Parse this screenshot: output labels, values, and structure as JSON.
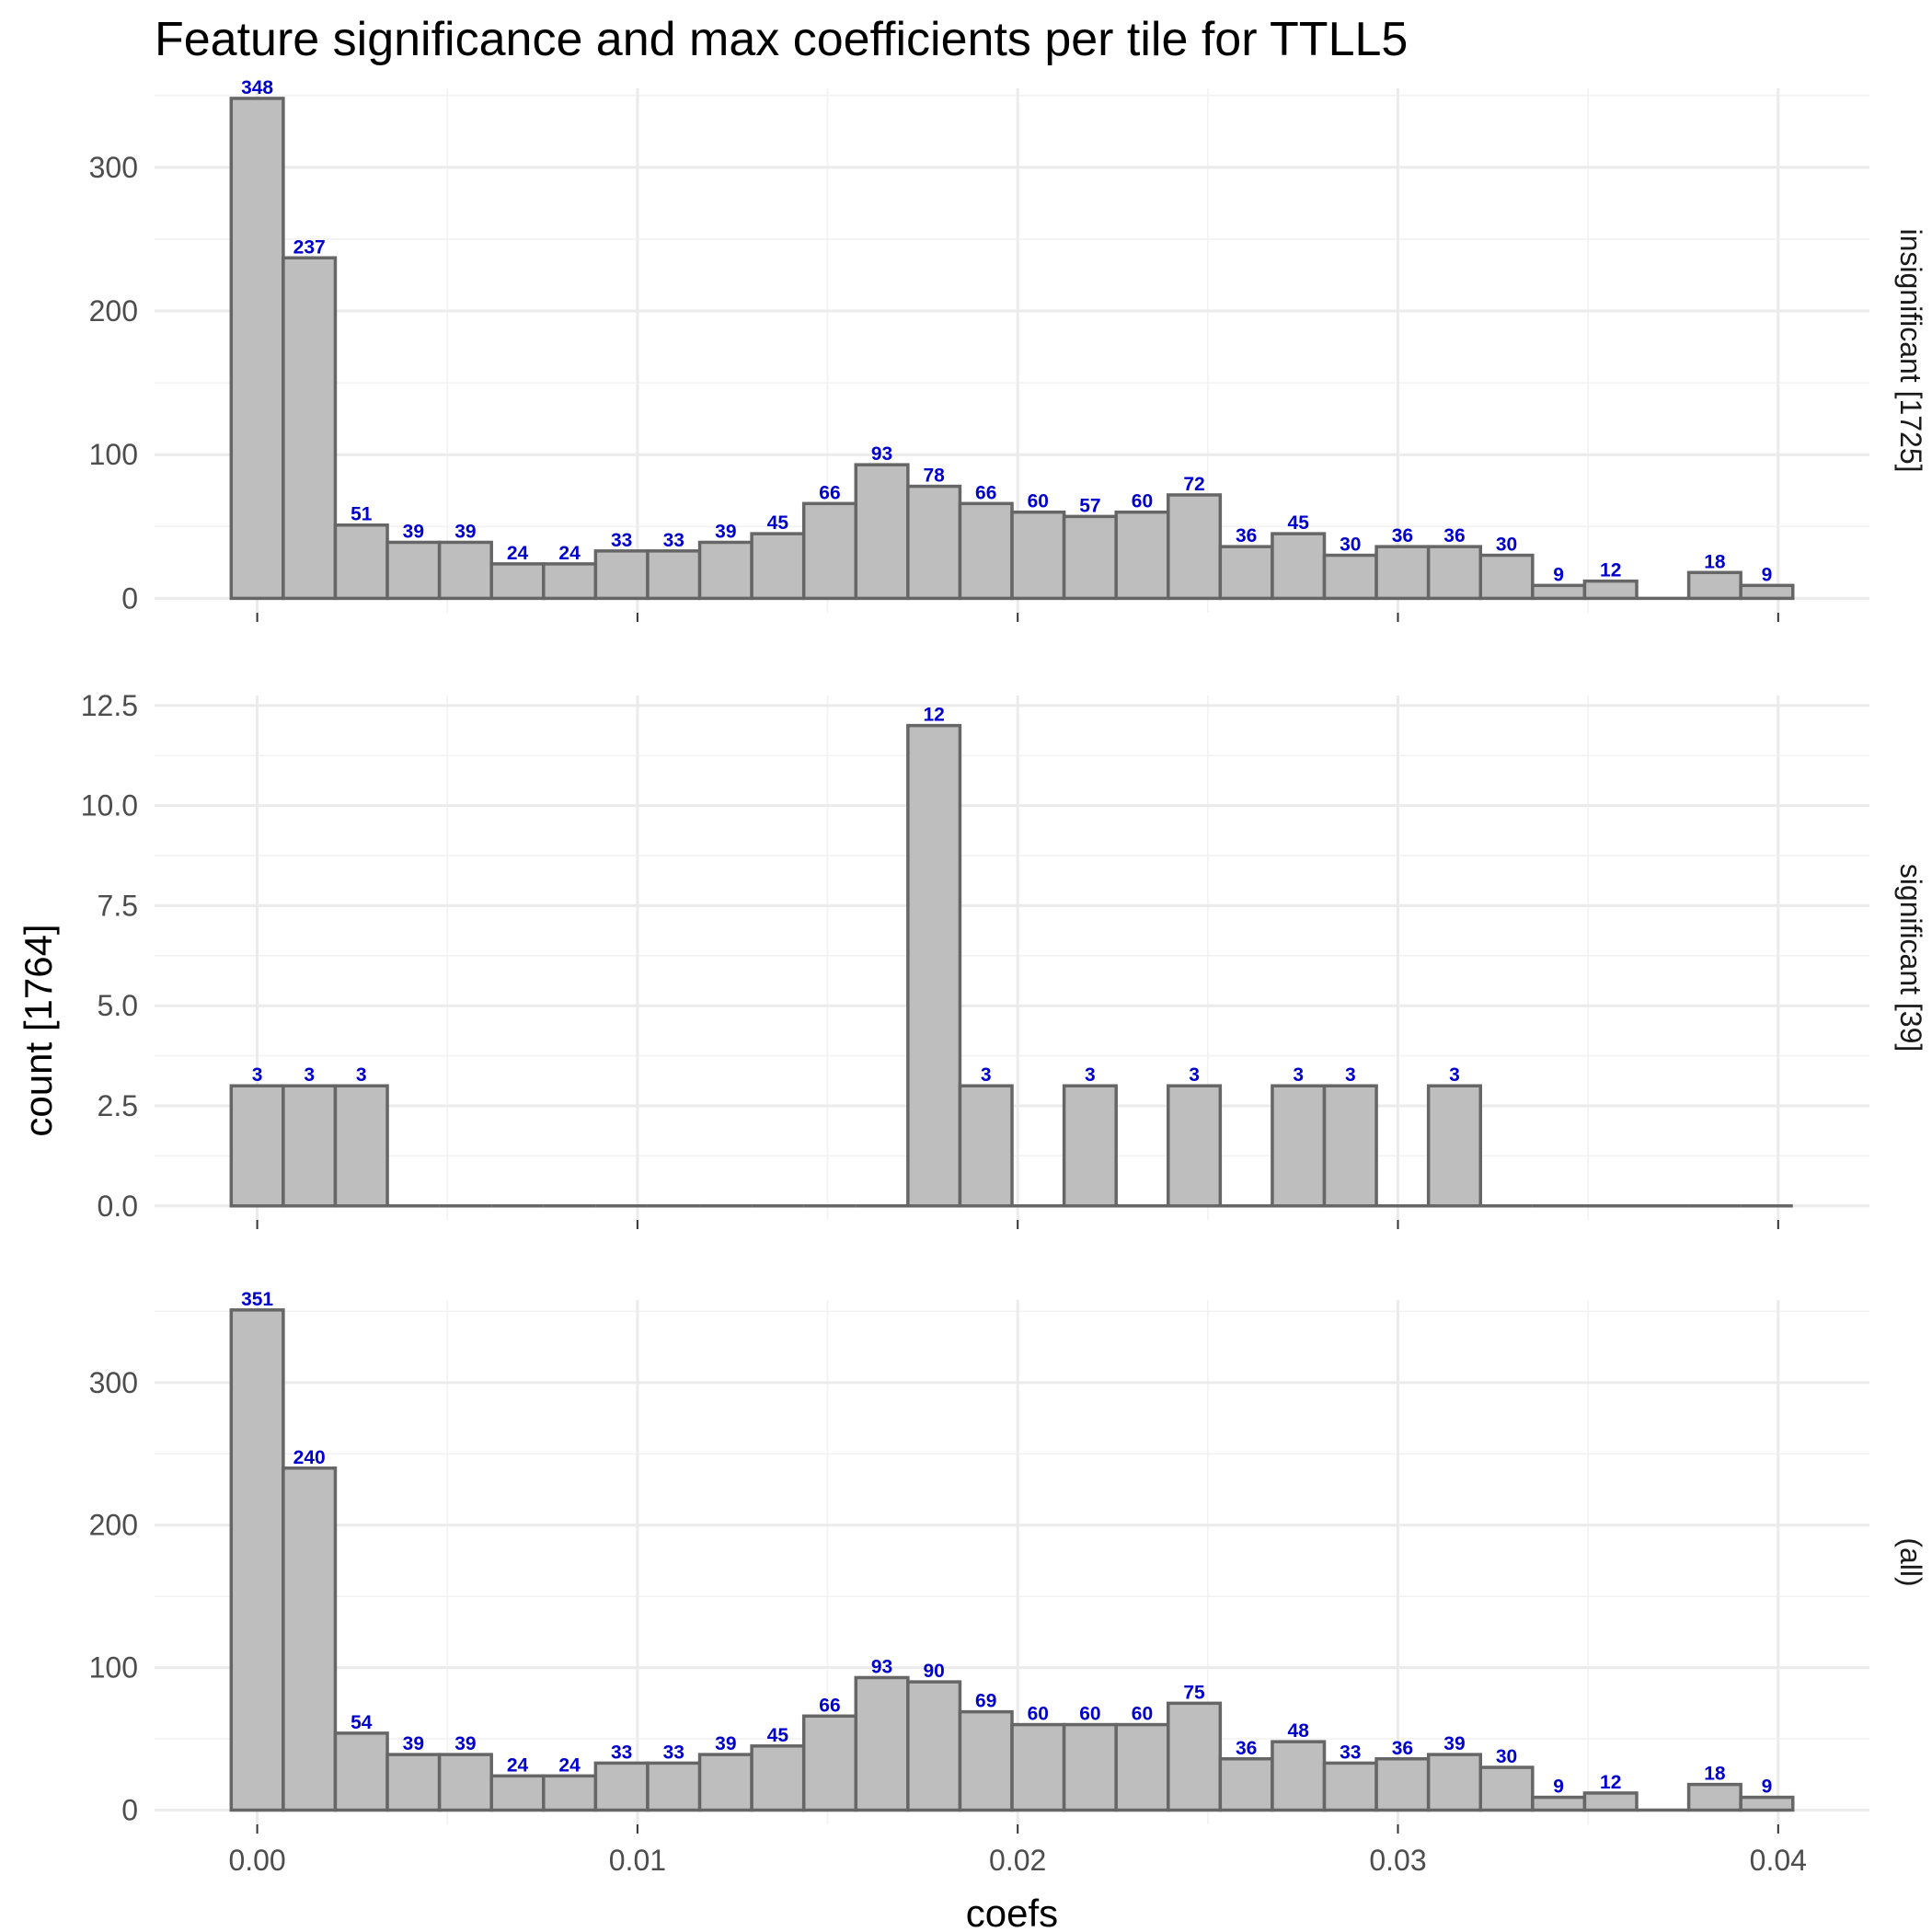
{
  "chart_data": {
    "type": "bar",
    "title": "Feature significance and max coefficients per tile for TTLL5",
    "xlabel": "coefs",
    "ylabel": "count [1764]",
    "x_ticks": [
      "0.00",
      "0.01",
      "0.02",
      "0.03",
      "0.04"
    ],
    "x_tick_values": [
      0,
      0.01,
      0.02,
      0.03,
      0.04
    ],
    "xlim": [
      -0.0027,
      0.0424
    ],
    "bin_width": 0.001369,
    "bin_centers": [
      0.0,
      0.001369,
      0.002738,
      0.004107,
      0.005476,
      0.006845,
      0.008214,
      0.009583,
      0.010952,
      0.012321,
      0.01369,
      0.015059,
      0.016428,
      0.017797,
      0.019166,
      0.020535,
      0.021904,
      0.023273,
      0.024642,
      0.026011,
      0.02738,
      0.028749,
      0.030118,
      0.031487,
      0.032856,
      0.034225,
      0.035594,
      0.036963,
      0.038332,
      0.039701
    ],
    "bar_fill": "#bebebe",
    "bar_outline": "#666666",
    "label_color": "#0000cc",
    "grid": true,
    "panels": [
      {
        "strip": "insignificant [1725]",
        "ylim": [
          -10,
          355
        ],
        "y_ticks": [
          "0",
          "100",
          "200",
          "300"
        ],
        "y_tick_values": [
          0,
          100,
          200,
          300
        ],
        "values": [
          348,
          237,
          51,
          39,
          39,
          24,
          24,
          33,
          33,
          39,
          45,
          66,
          93,
          78,
          66,
          60,
          57,
          60,
          72,
          36,
          45,
          30,
          36,
          36,
          30,
          9,
          12,
          0,
          18,
          9
        ]
      },
      {
        "strip": "significant [39]",
        "ylim": [
          -0.35,
          12.75
        ],
        "y_ticks": [
          "0.0",
          "2.5",
          "5.0",
          "7.5",
          "10.0",
          "12.5"
        ],
        "y_tick_values": [
          0,
          2.5,
          5,
          7.5,
          10,
          12.5
        ],
        "values": [
          3,
          3,
          3,
          0,
          0,
          0,
          0,
          0,
          0,
          0,
          0,
          0,
          0,
          12,
          3,
          0,
          3,
          0,
          3,
          0,
          3,
          3,
          0,
          3,
          0,
          0,
          0,
          0,
          0,
          0
        ]
      },
      {
        "strip": "(all)",
        "ylim": [
          -10,
          358
        ],
        "y_ticks": [
          "0",
          "100",
          "200",
          "300"
        ],
        "y_tick_values": [
          0,
          100,
          200,
          300
        ],
        "values": [
          351,
          240,
          54,
          39,
          39,
          24,
          24,
          33,
          33,
          39,
          45,
          66,
          93,
          90,
          69,
          60,
          60,
          60,
          75,
          36,
          48,
          33,
          36,
          39,
          30,
          9,
          12,
          0,
          18,
          9
        ]
      }
    ]
  }
}
